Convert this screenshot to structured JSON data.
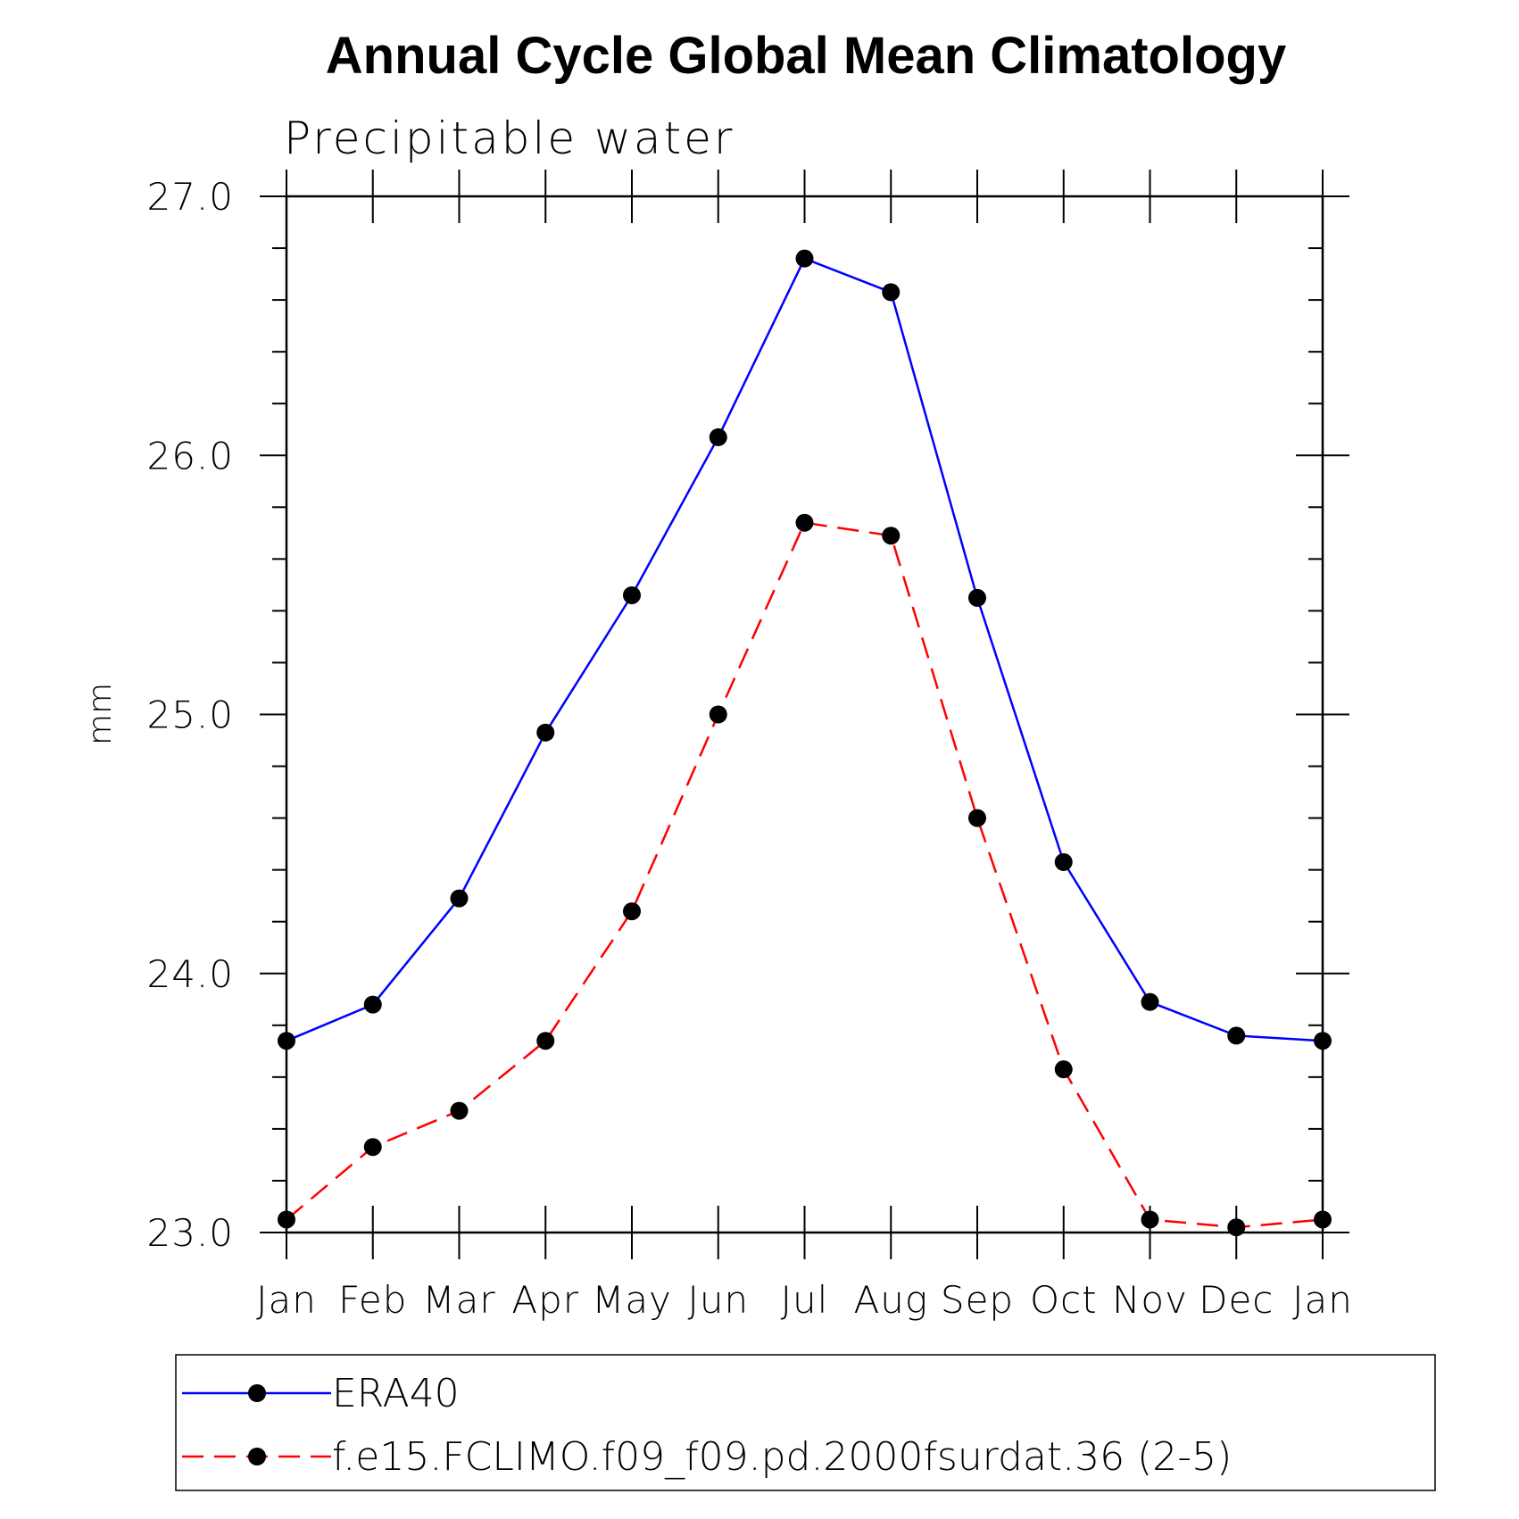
{
  "chart_data": {
    "type": "line",
    "title": "Annual Cycle Global Mean Climatology",
    "subtitle": "Precipitable water",
    "xlabel": "",
    "ylabel": "mm",
    "categories": [
      "Jan",
      "Feb",
      "Mar",
      "Apr",
      "May",
      "Jun",
      "Jul",
      "Aug",
      "Sep",
      "Oct",
      "Nov",
      "Dec",
      "Jan"
    ],
    "ylim": [
      23.0,
      27.0
    ],
    "yticks": [
      "23.0",
      "24.0",
      "25.0",
      "26.0",
      "27.0"
    ],
    "yticks_values": [
      23.0,
      24.0,
      25.0,
      26.0,
      27.0
    ],
    "yminor_step": 0.2,
    "grid": false,
    "legend_position": "bottom",
    "series": [
      {
        "name": "ERA40",
        "color": "#0000ff",
        "dash": "solid",
        "values": [
          23.74,
          23.88,
          24.29,
          24.93,
          25.46,
          26.07,
          26.76,
          26.63,
          25.45,
          24.43,
          23.89,
          23.76,
          23.74
        ]
      },
      {
        "name": "f.e15.FCLIMO.f09_f09.pd.2000fsurdat.36 (2-5)",
        "color": "#ff0000",
        "dash": "dashed",
        "values": [
          23.05,
          23.33,
          23.47,
          23.74,
          24.24,
          25.0,
          25.74,
          25.69,
          24.6,
          23.63,
          23.05,
          23.02,
          23.05
        ]
      }
    ]
  }
}
